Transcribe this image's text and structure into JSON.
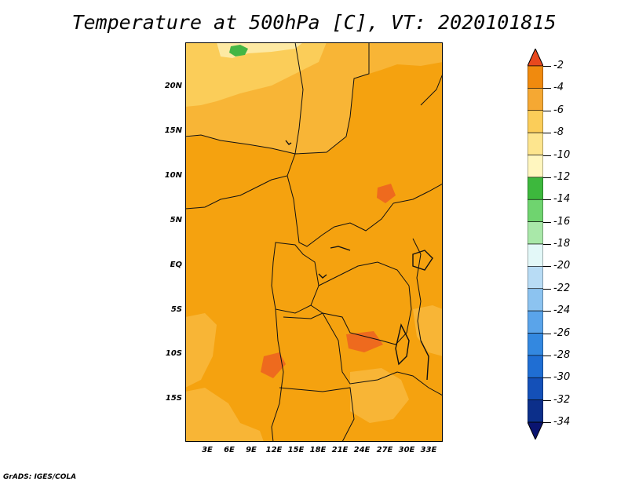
{
  "title": "Temperature at 500hPa [C], VT: 2020101815",
  "credit": "GrADS: IGES/COLA",
  "map": {
    "lat_labels": [
      "20N",
      "15N",
      "10N",
      "5N",
      "EQ",
      "5S",
      "10S",
      "15S"
    ],
    "lon_labels": [
      "3E",
      "6E",
      "9E",
      "12E",
      "15E",
      "18E",
      "21E",
      "24E",
      "27E",
      "30E",
      "33E"
    ]
  },
  "colorbar": {
    "labels": [
      "-2",
      "-4",
      "-6",
      "-8",
      "-10",
      "-12",
      "-14",
      "-16",
      "-18",
      "-20",
      "-22",
      "-24",
      "-26",
      "-28",
      "-30",
      "-32",
      "-34"
    ],
    "colors": [
      "#e8481e",
      "#f08a0e",
      "#f5a833",
      "#fbcd59",
      "#fde58e",
      "#fff6bf",
      "#3db83d",
      "#6fd46f",
      "#a9e8a9",
      "#e3f8f8",
      "#b8dcf5",
      "#8cc3f0",
      "#5aa4ea",
      "#3388e0",
      "#1f6ed3",
      "#1450b8",
      "#0c2f8a",
      "#0a1470"
    ]
  },
  "colors": {
    "warm_dominant": "#f5a20f",
    "warm_hot": "#ee6a1e",
    "cool_yellow": "#fbd06a",
    "pale_yellow": "#fde9a3",
    "green": "#44b644"
  }
}
